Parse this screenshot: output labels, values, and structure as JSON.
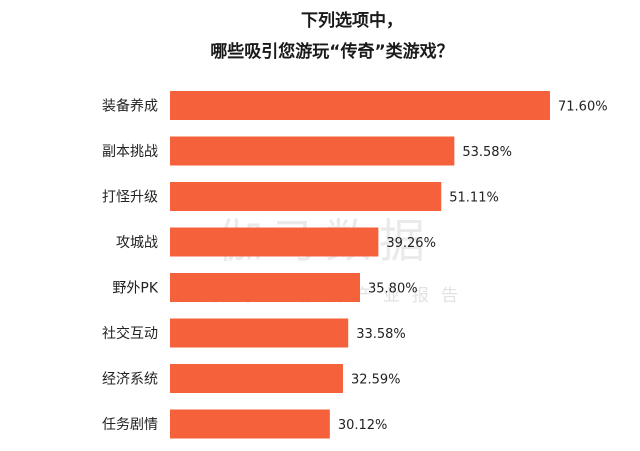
{
  "title_lines": [
    "下列选项中，",
    "哪些吸引您游玩“传奇”类游戏？"
  ],
  "watermark": {
    "main": "伽马数据",
    "sub": "微信号：游戏产业报告"
  },
  "colors": {
    "bar": "#f5613b",
    "text": "#222222"
  },
  "chart_data": {
    "type": "bar",
    "orientation": "horizontal",
    "title": "下列选项中，哪些吸引您游玩“传奇”类游戏？",
    "categories": [
      "装备养成",
      "副本挑战",
      "打怪升级",
      "攻城战",
      "野外PK",
      "社交互动",
      "经济系统",
      "任务剧情"
    ],
    "values": [
      71.6,
      53.58,
      51.11,
      39.26,
      35.8,
      33.58,
      32.59,
      30.12
    ],
    "value_labels": [
      "71.60%",
      "53.58%",
      "51.11%",
      "39.26%",
      "35.80%",
      "33.58%",
      "32.59%",
      "30.12%"
    ],
    "unit": "%",
    "xlim": [
      0,
      71.6
    ],
    "grid": false,
    "legend": "none"
  }
}
